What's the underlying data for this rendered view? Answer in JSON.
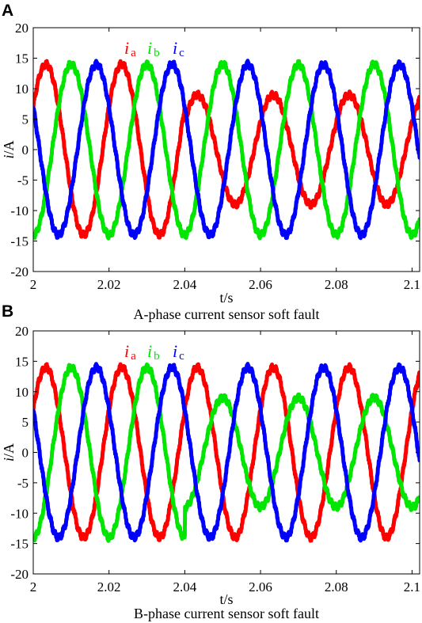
{
  "colors": {
    "ia": "#ff0000",
    "ib": "#00e600",
    "ic": "#0000ff"
  },
  "chart_data": [
    {
      "type": "line",
      "panel_label": "A",
      "caption": "A-phase current sensor soft fault",
      "xlabel": "t/s",
      "ylabel_main": "i",
      "ylabel_unit": "/A",
      "xlim": [
        2.0,
        2.102
      ],
      "ylim": [
        -20,
        20
      ],
      "xticks": [
        "2",
        "2.02",
        "2.04",
        "2.06",
        "2.08",
        "2.1"
      ],
      "yticks": [
        "20",
        "15",
        "10",
        "5",
        "0",
        "-5",
        "-10",
        "-15",
        "-20"
      ],
      "fault_time": 2.04,
      "frequency_hz": 50,
      "series": [
        {
          "name": "i",
          "sub": "a",
          "amplitude_before": 14,
          "amplitude_after": 9,
          "phase_deg": 30
        },
        {
          "name": "i",
          "sub": "b",
          "amplitude_before": 14,
          "amplitude_after": 14,
          "phase_deg": -90
        },
        {
          "name": "i",
          "sub": "c",
          "amplitude_before": 14,
          "amplitude_after": 14,
          "phase_deg": 150
        }
      ]
    },
    {
      "type": "line",
      "panel_label": "B",
      "caption": "B-phase current sensor soft fault",
      "xlabel": "t/s",
      "ylabel_main": "i",
      "ylabel_unit": "/A",
      "xlim": [
        2.0,
        2.102
      ],
      "ylim": [
        -20,
        20
      ],
      "xticks": [
        "2",
        "2.02",
        "2.04",
        "2.06",
        "2.08",
        "2.1"
      ],
      "yticks": [
        "20",
        "15",
        "10",
        "5",
        "0",
        "-5",
        "-10",
        "-15",
        "-20"
      ],
      "fault_time": 2.04,
      "frequency_hz": 50,
      "series": [
        {
          "name": "i",
          "sub": "a",
          "amplitude_before": 14,
          "amplitude_after": 14,
          "phase_deg": 30
        },
        {
          "name": "i",
          "sub": "b",
          "amplitude_before": 14,
          "amplitude_after": 9,
          "phase_deg": -90
        },
        {
          "name": "i",
          "sub": "c",
          "amplitude_before": 14,
          "amplitude_after": 14,
          "phase_deg": 150
        }
      ]
    }
  ]
}
